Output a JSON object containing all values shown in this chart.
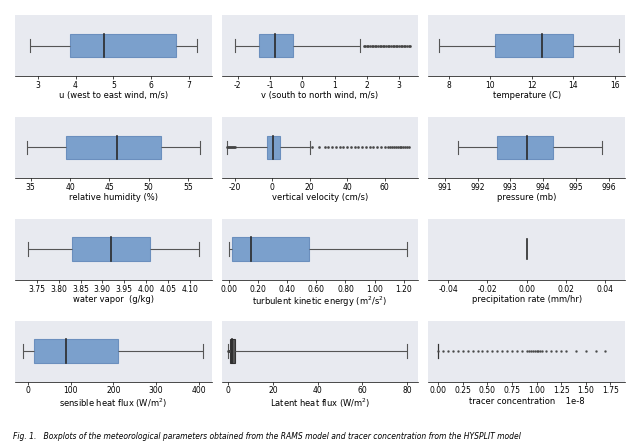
{
  "panels": [
    {
      "label": "u (west to east wind, m/s)",
      "whisker_low": 2.8,
      "q1": 3.85,
      "median": 4.75,
      "q3": 6.65,
      "whisker_high": 7.2,
      "fliers": [],
      "xlim": [
        2.4,
        7.6
      ],
      "xticks": [
        3,
        4,
        5,
        6,
        7
      ]
    },
    {
      "label": "v (south to north wind, m/s)",
      "whisker_low": -2.1,
      "q1": -1.35,
      "median": -0.85,
      "q3": -0.3,
      "whisker_high": 1.8,
      "fliers": [
        1.9,
        1.95,
        2.0,
        2.05,
        2.1,
        2.15,
        2.2,
        2.25,
        2.3,
        2.35,
        2.4,
        2.45,
        2.5,
        2.55,
        2.6,
        2.65,
        2.7,
        2.75,
        2.8,
        2.85,
        2.9,
        2.95,
        3.0,
        3.05,
        3.1,
        3.15,
        3.2,
        3.25,
        3.3,
        3.35
      ],
      "xlim": [
        -2.5,
        3.6
      ],
      "xticks": [
        -2,
        -1,
        0,
        1,
        2,
        3
      ]
    },
    {
      "label": "temperature (C)",
      "whisker_low": 7.5,
      "q1": 10.2,
      "median": 12.5,
      "q3": 14.0,
      "whisker_high": 16.2,
      "fliers": [],
      "xlim": [
        7.0,
        16.5
      ],
      "xticks": [
        8,
        10,
        12,
        14,
        16
      ]
    },
    {
      "label": "relative humidity (%)",
      "whisker_low": 34.5,
      "q1": 39.5,
      "median": 46.0,
      "q3": 51.5,
      "whisker_high": 56.5,
      "fliers": [],
      "xlim": [
        33.0,
        58.0
      ],
      "xticks": [
        35,
        40,
        45,
        50,
        55
      ]
    },
    {
      "label": "vertical velocity (cm/s)",
      "whisker_low": -24.0,
      "q1": -3.0,
      "median": 0.5,
      "q3": 4.0,
      "whisker_high": 20.0,
      "fliers": [
        -24.0,
        -23.5,
        -23.0,
        -22.5,
        -22.0,
        -21.5,
        -21.0,
        -20.5,
        -20.0,
        21.0,
        25.0,
        28.0,
        30.0,
        32.0,
        34.0,
        36.0,
        38.0,
        40.0,
        42.0,
        44.0,
        46.0,
        48.0,
        50.0,
        52.0,
        54.0,
        56.0,
        58.0,
        60.0,
        62.0,
        63.0,
        64.0,
        65.0,
        66.0,
        67.0,
        68.0,
        69.0,
        70.0,
        71.0,
        72.0,
        73.0
      ],
      "xlim": [
        -27,
        78
      ],
      "xticks": [
        -20,
        0,
        20,
        40,
        60
      ]
    },
    {
      "label": "pressure (mb)",
      "whisker_low": 991.4,
      "q1": 992.6,
      "median": 993.5,
      "q3": 994.3,
      "whisker_high": 995.8,
      "fliers": [],
      "xlim": [
        990.5,
        996.5
      ],
      "xticks": [
        991,
        992,
        993,
        994,
        995,
        996
      ]
    },
    {
      "label": "water vapor  (g/kg)",
      "whisker_low": 3.73,
      "q1": 3.83,
      "median": 3.92,
      "q3": 4.01,
      "whisker_high": 4.12,
      "fliers": [],
      "xlim": [
        3.7,
        4.15
      ],
      "xticks": [
        3.75,
        3.8,
        3.85,
        3.9,
        3.95,
        4.0,
        4.05,
        4.1
      ]
    },
    {
      "label": "turbulent kinetic energy (m^2/s^2)",
      "whisker_low": 0.0,
      "q1": 0.02,
      "median": 0.15,
      "q3": 0.55,
      "whisker_high": 1.22,
      "fliers": [],
      "xlim": [
        -0.05,
        1.3
      ],
      "xticks": [
        0.0,
        0.2,
        0.4,
        0.6,
        0.8,
        1.0,
        1.2
      ]
    },
    {
      "label": "precipitation rate (mm/hr)",
      "whisker_low": null,
      "q1": null,
      "median": 0.0,
      "q3": null,
      "whisker_high": null,
      "fliers": [],
      "xlim": [
        -0.05,
        0.05
      ],
      "xticks": [
        -0.04,
        -0.02,
        0.0,
        0.02,
        0.04
      ],
      "median_only": true
    },
    {
      "label": "sensible heat flux (W/m^2)",
      "whisker_low": -12.0,
      "q1": 15.0,
      "median": 90.0,
      "q3": 210.0,
      "whisker_high": 410.0,
      "fliers": [],
      "xlim": [
        -30,
        430
      ],
      "xticks": [
        0,
        100,
        200,
        300,
        400
      ]
    },
    {
      "label": "Latent heat flux (W/m^2)",
      "whisker_low": 0.0,
      "q1": 0.5,
      "median": 1.5,
      "q3": 3.0,
      "whisker_high": 80.0,
      "fliers": [
        0.0,
        0.2,
        0.3,
        0.4
      ],
      "xlim": [
        -3,
        85
      ],
      "xticks": [
        0,
        20,
        40,
        60,
        80
      ],
      "dark_box": true
    },
    {
      "label": "tracer concentration",
      "whisker_low": 0.0,
      "q1": 0.0,
      "median": 0.0,
      "q3": 0.0,
      "whisker_high": 0.0,
      "fliers": [
        0.0,
        5e-10,
        1e-09,
        1.5e-09,
        2e-09,
        2.5e-09,
        3e-09,
        3.5e-09,
        4e-09,
        4.5e-09,
        5e-09,
        5.5e-09,
        6e-09,
        6.5e-09,
        7e-09,
        7.5e-09,
        8e-09,
        8.5e-09,
        9e-09,
        9.2e-09,
        9.4e-09,
        9.6e-09,
        9.8e-09,
        1e-08,
        1.02e-08,
        1.04e-08,
        1.06e-08,
        1.1e-08,
        1.15e-08,
        1.2e-08,
        1.25e-08,
        1.3e-08,
        1.4e-08,
        1.5e-08,
        1.6e-08,
        1.7e-08
      ],
      "xlim": [
        -1e-09,
        1.9e-08
      ],
      "xticks": [
        0.0,
        2.5e-09,
        5e-09,
        7.5e-09,
        1e-08,
        1.25e-08,
        1.5e-08,
        1.75e-08
      ],
      "sci_notation": true,
      "sci_exp": -8,
      "dark_whisker": true
    }
  ],
  "box_color": "#6b8fbe",
  "box_facecolor": "#7ba0cc",
  "median_color": "#2a2a2a",
  "whisker_color": "#555555",
  "flier_color": "#444444",
  "background_color": "#e8eaf0",
  "fig_background": "#ffffff",
  "caption": "Fig. 1.   Boxplots of the meteorological parameters obtained from the RAMS model and tracer concentration from the HYSPLIT model",
  "nrows": 4,
  "ncols": 3
}
